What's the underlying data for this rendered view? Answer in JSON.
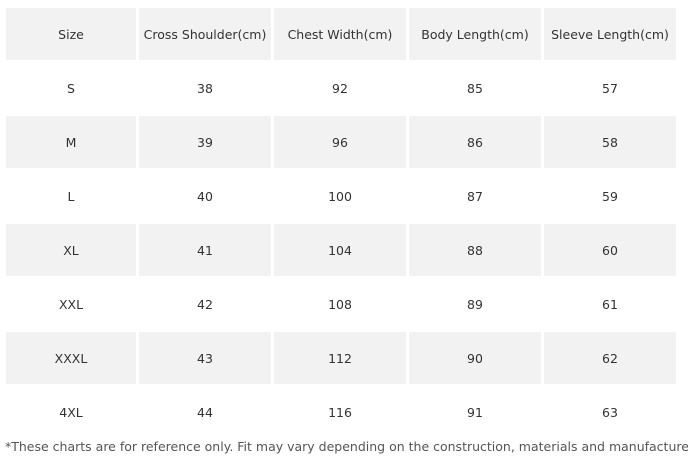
{
  "table": {
    "header": [
      "Size",
      "Cross Shoulder(cm)",
      "Chest Width(cm)",
      "Body Length(cm)",
      "Sleeve Length(cm)"
    ],
    "rows": [
      [
        "S",
        38,
        92,
        85,
        57
      ],
      [
        "M",
        39,
        96,
        86,
        58
      ],
      [
        "L",
        40,
        100,
        87,
        59
      ],
      [
        "XL",
        41,
        104,
        88,
        60
      ],
      [
        "XXL",
        42,
        108,
        89,
        61
      ],
      [
        "XXXL",
        43,
        112,
        90,
        62
      ],
      [
        "4XL",
        44,
        116,
        91,
        63
      ]
    ]
  },
  "footnote": "*These charts are for reference only. Fit may vary depending on the construction, materials and manufacturer."
}
